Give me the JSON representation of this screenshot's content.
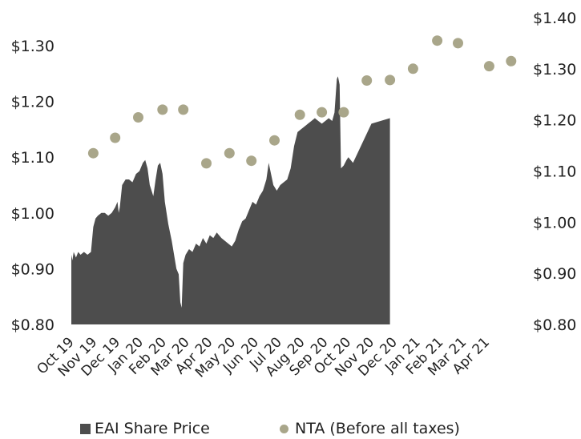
{
  "chart_data": {
    "type": "area",
    "title": "",
    "xlabel": "",
    "ylabel": "",
    "x_ticks": [
      "Oct 19",
      "Nov 19",
      "Dec 19",
      "Jan 20",
      "Feb 20",
      "Mar 20",
      "Apr 20",
      "May 20",
      "Jun 20",
      "Jul 20",
      "Aug 20",
      "Sep 20",
      "Oct 20",
      "Nov 20",
      "Dec 20",
      "Jan 21",
      "Feb 21",
      "Mar 21",
      "Apr 21"
    ],
    "y_left": {
      "ticks": [
        "$1.30",
        "$1.20",
        "$1.10",
        "$1.00",
        "$0.90",
        "$0.80"
      ],
      "ylim": [
        0.8,
        1.3
      ]
    },
    "y_right": {
      "ticks": [
        "$1.40",
        "$1.30",
        "$1.20",
        "$1.10",
        "$1.00",
        "$0.90",
        "$0.80"
      ],
      "ylim": [
        0.8,
        1.4
      ]
    },
    "legend_position": "bottom",
    "series": [
      {
        "name": "EAI Share Price",
        "kind": "area",
        "axis": "left",
        "color": "#4d4d4d",
        "points": [
          [
            0.0,
            0.925
          ],
          [
            0.05,
            0.915
          ],
          [
            0.1,
            0.93
          ],
          [
            0.2,
            0.92
          ],
          [
            0.3,
            0.93
          ],
          [
            0.4,
            0.925
          ],
          [
            0.55,
            0.93
          ],
          [
            0.7,
            0.925
          ],
          [
            0.85,
            0.93
          ],
          [
            0.95,
            0.975
          ],
          [
            1.05,
            0.99
          ],
          [
            1.15,
            0.995
          ],
          [
            1.3,
            1.0
          ],
          [
            1.45,
            1.0
          ],
          [
            1.6,
            0.995
          ],
          [
            1.75,
            1.0
          ],
          [
            1.9,
            1.01
          ],
          [
            2.0,
            1.02
          ],
          [
            2.05,
            1.0
          ],
          [
            2.1,
            1.01
          ],
          [
            2.2,
            1.05
          ],
          [
            2.35,
            1.06
          ],
          [
            2.5,
            1.06
          ],
          [
            2.65,
            1.055
          ],
          [
            2.8,
            1.07
          ],
          [
            2.95,
            1.075
          ],
          [
            3.1,
            1.09
          ],
          [
            3.2,
            1.095
          ],
          [
            3.3,
            1.08
          ],
          [
            3.4,
            1.05
          ],
          [
            3.55,
            1.03
          ],
          [
            3.65,
            1.06
          ],
          [
            3.75,
            1.085
          ],
          [
            3.85,
            1.09
          ],
          [
            3.95,
            1.07
          ],
          [
            4.05,
            1.02
          ],
          [
            4.2,
            0.98
          ],
          [
            4.35,
            0.95
          ],
          [
            4.55,
            0.9
          ],
          [
            4.65,
            0.89
          ],
          [
            4.72,
            0.84
          ],
          [
            4.78,
            0.83
          ],
          [
            4.85,
            0.91
          ],
          [
            4.95,
            0.925
          ],
          [
            5.1,
            0.935
          ],
          [
            5.25,
            0.93
          ],
          [
            5.4,
            0.945
          ],
          [
            5.55,
            0.94
          ],
          [
            5.7,
            0.955
          ],
          [
            5.85,
            0.945
          ],
          [
            6.0,
            0.96
          ],
          [
            6.15,
            0.955
          ],
          [
            6.3,
            0.965
          ],
          [
            6.5,
            0.955
          ],
          [
            6.65,
            0.95
          ],
          [
            6.8,
            0.945
          ],
          [
            6.95,
            0.94
          ],
          [
            7.1,
            0.95
          ],
          [
            7.25,
            0.97
          ],
          [
            7.4,
            0.985
          ],
          [
            7.55,
            0.99
          ],
          [
            7.7,
            1.005
          ],
          [
            7.85,
            1.02
          ],
          [
            8.0,
            1.015
          ],
          [
            8.15,
            1.03
          ],
          [
            8.3,
            1.04
          ],
          [
            8.45,
            1.06
          ],
          [
            8.55,
            1.09
          ],
          [
            8.65,
            1.07
          ],
          [
            8.75,
            1.05
          ],
          [
            8.9,
            1.04
          ],
          [
            9.05,
            1.05
          ],
          [
            9.2,
            1.055
          ],
          [
            9.35,
            1.06
          ],
          [
            9.5,
            1.08
          ],
          [
            9.65,
            1.12
          ],
          [
            9.8,
            1.145
          ],
          [
            9.95,
            1.15
          ],
          [
            10.1,
            1.155
          ],
          [
            10.25,
            1.16
          ],
          [
            10.4,
            1.165
          ],
          [
            10.55,
            1.17
          ],
          [
            10.7,
            1.165
          ],
          [
            10.85,
            1.16
          ],
          [
            11.0,
            1.165
          ],
          [
            11.15,
            1.17
          ],
          [
            11.3,
            1.165
          ],
          [
            11.4,
            1.18
          ],
          [
            11.5,
            1.24
          ],
          [
            11.55,
            1.245
          ],
          [
            11.62,
            1.23
          ],
          [
            11.68,
            1.08
          ],
          [
            11.8,
            1.085
          ],
          [
            11.92,
            1.095
          ],
          [
            12.0,
            1.1
          ],
          [
            12.1,
            1.095
          ],
          [
            12.2,
            1.09
          ],
          [
            13.0,
            1.16
          ],
          [
            13.8,
            1.17
          ]
        ]
      },
      {
        "name": "NTA (Before all taxes)",
        "kind": "scatter",
        "axis": "right",
        "color": "#a9a68a",
        "points": [
          [
            0.95,
            1.135
          ],
          [
            1.9,
            1.165
          ],
          [
            2.9,
            1.205
          ],
          [
            3.95,
            1.22
          ],
          [
            4.85,
            1.22
          ],
          [
            5.85,
            1.115
          ],
          [
            6.85,
            1.135
          ],
          [
            7.8,
            1.12
          ],
          [
            8.8,
            1.16
          ],
          [
            9.9,
            1.21
          ],
          [
            10.85,
            1.215
          ],
          [
            11.8,
            1.215
          ],
          [
            12.8,
            1.277
          ],
          [
            13.8,
            1.278
          ],
          [
            14.8,
            1.3
          ],
          [
            15.85,
            1.355
          ],
          [
            16.75,
            1.35
          ],
          [
            18.1,
            1.305
          ],
          [
            19.05,
            1.315
          ]
        ]
      }
    ]
  }
}
